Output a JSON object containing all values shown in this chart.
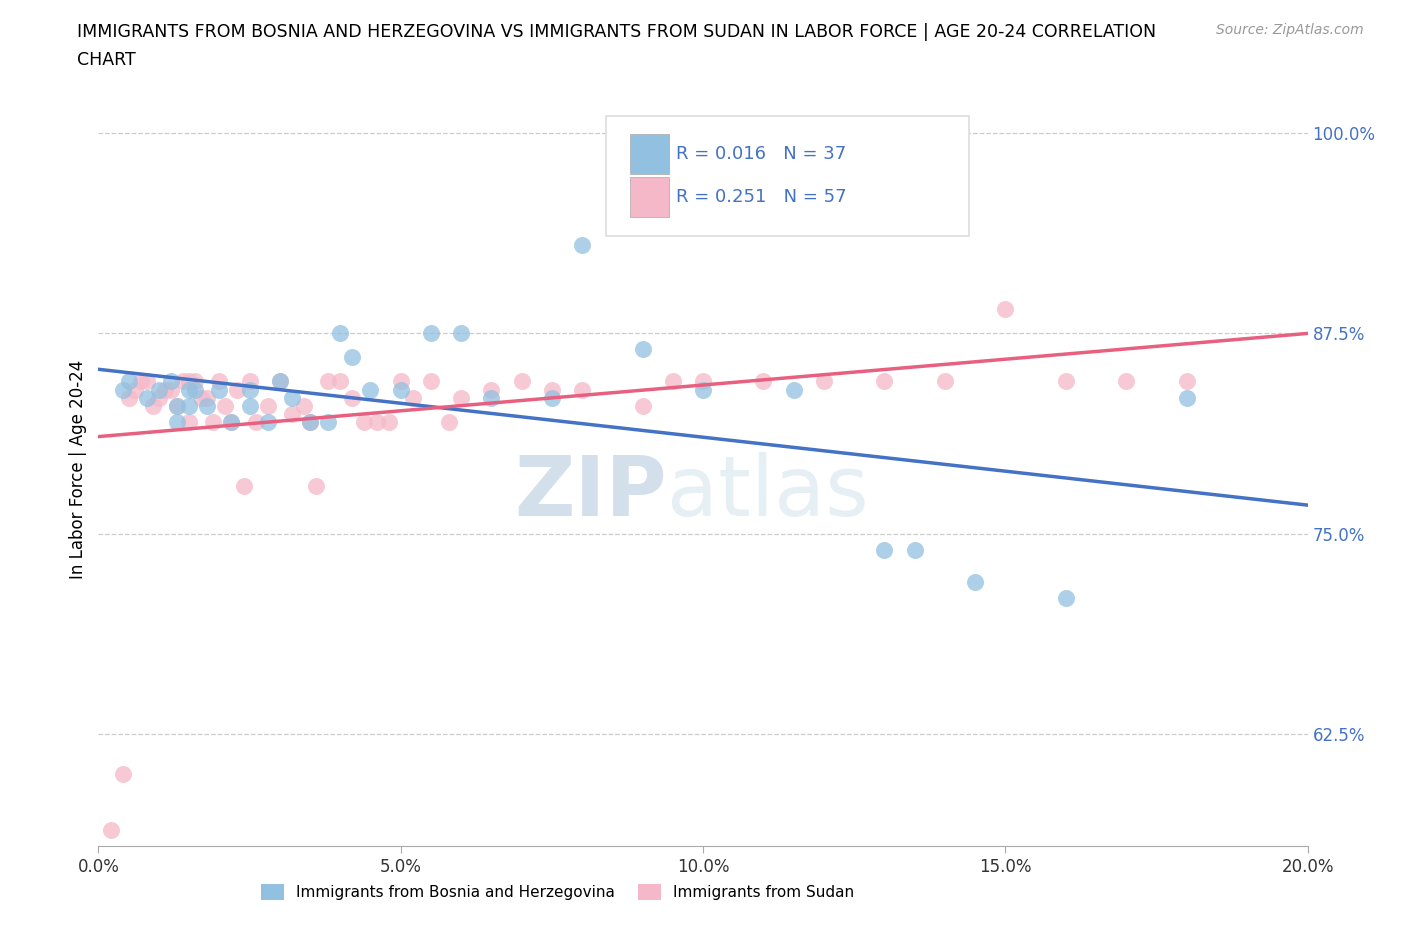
{
  "title_line1": "IMMIGRANTS FROM BOSNIA AND HERZEGOVINA VS IMMIGRANTS FROM SUDAN IN LABOR FORCE | AGE 20-24 CORRELATION",
  "title_line2": "CHART",
  "source": "Source: ZipAtlas.com",
  "ylabel": "In Labor Force | Age 20-24",
  "xlim": [
    0.0,
    0.2
  ],
  "ylim": [
    0.555,
    1.025
  ],
  "yticks": [
    0.625,
    0.75,
    0.875,
    1.0
  ],
  "ytick_labels": [
    "62.5%",
    "75.0%",
    "87.5%",
    "100.0%"
  ],
  "xticks": [
    0.0,
    0.05,
    0.1,
    0.15,
    0.2
  ],
  "xtick_labels": [
    "0.0%",
    "5.0%",
    "10.0%",
    "15.0%",
    "20.0%"
  ],
  "r_bosnia": 0.016,
  "n_bosnia": 37,
  "r_sudan": 0.251,
  "n_sudan": 57,
  "color_bosnia": "#92c0e0",
  "color_sudan": "#f5b8c8",
  "color_bosnia_line": "#4472c4",
  "color_sudan_line": "#e86080",
  "watermark_zip": "ZIP",
  "watermark_atlas": "atlas",
  "legend_r_color": "#4472c4",
  "bosnia_x": [
    0.004,
    0.005,
    0.008,
    0.01,
    0.012,
    0.013,
    0.013,
    0.015,
    0.015,
    0.016,
    0.018,
    0.02,
    0.022,
    0.025,
    0.025,
    0.028,
    0.03,
    0.032,
    0.035,
    0.038,
    0.04,
    0.042,
    0.045,
    0.05,
    0.055,
    0.06,
    0.065,
    0.075,
    0.08,
    0.09,
    0.1,
    0.115,
    0.13,
    0.135,
    0.145,
    0.16,
    0.18
  ],
  "bosnia_y": [
    0.84,
    0.845,
    0.835,
    0.84,
    0.845,
    0.83,
    0.82,
    0.84,
    0.83,
    0.84,
    0.83,
    0.84,
    0.82,
    0.84,
    0.83,
    0.82,
    0.845,
    0.835,
    0.82,
    0.82,
    0.875,
    0.86,
    0.84,
    0.84,
    0.875,
    0.875,
    0.835,
    0.835,
    0.93,
    0.865,
    0.84,
    0.84,
    0.74,
    0.74,
    0.72,
    0.71,
    0.835
  ],
  "sudan_x": [
    0.002,
    0.004,
    0.005,
    0.006,
    0.007,
    0.008,
    0.009,
    0.01,
    0.011,
    0.012,
    0.013,
    0.014,
    0.015,
    0.015,
    0.016,
    0.017,
    0.018,
    0.019,
    0.02,
    0.021,
    0.022,
    0.023,
    0.024,
    0.025,
    0.026,
    0.028,
    0.03,
    0.032,
    0.034,
    0.035,
    0.036,
    0.038,
    0.04,
    0.042,
    0.044,
    0.046,
    0.048,
    0.05,
    0.052,
    0.055,
    0.058,
    0.06,
    0.065,
    0.07,
    0.075,
    0.08,
    0.09,
    0.095,
    0.1,
    0.11,
    0.12,
    0.13,
    0.14,
    0.15,
    0.16,
    0.17,
    0.18
  ],
  "sudan_y": [
    0.565,
    0.6,
    0.835,
    0.84,
    0.845,
    0.845,
    0.83,
    0.835,
    0.84,
    0.84,
    0.83,
    0.845,
    0.845,
    0.82,
    0.845,
    0.835,
    0.835,
    0.82,
    0.845,
    0.83,
    0.82,
    0.84,
    0.78,
    0.845,
    0.82,
    0.83,
    0.845,
    0.825,
    0.83,
    0.82,
    0.78,
    0.845,
    0.845,
    0.835,
    0.82,
    0.82,
    0.82,
    0.845,
    0.835,
    0.845,
    0.82,
    0.835,
    0.84,
    0.845,
    0.84,
    0.84,
    0.83,
    0.845,
    0.845,
    0.845,
    0.845,
    0.845,
    0.845,
    0.89,
    0.845,
    0.845,
    0.845
  ]
}
